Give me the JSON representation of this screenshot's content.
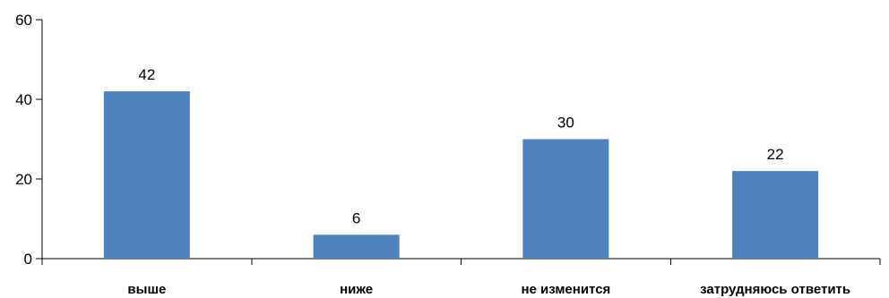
{
  "chart_data": {
    "type": "bar",
    "title": "",
    "xlabel": "",
    "ylabel": "",
    "categories": [
      "выше",
      "ниже",
      "не изменится",
      "затрудняюсь ответить"
    ],
    "values": [
      42,
      6,
      30,
      22
    ],
    "data_labels": [
      "42",
      "6",
      "30",
      "22"
    ],
    "ylim": [
      0,
      60
    ],
    "yticks": [
      0,
      20,
      40,
      60
    ],
    "ytick_labels": [
      "0",
      "20",
      "40",
      "60"
    ],
    "grid": false,
    "legend": "none",
    "colors": {
      "bar": "#4F81BD",
      "axis": "#000000"
    }
  }
}
